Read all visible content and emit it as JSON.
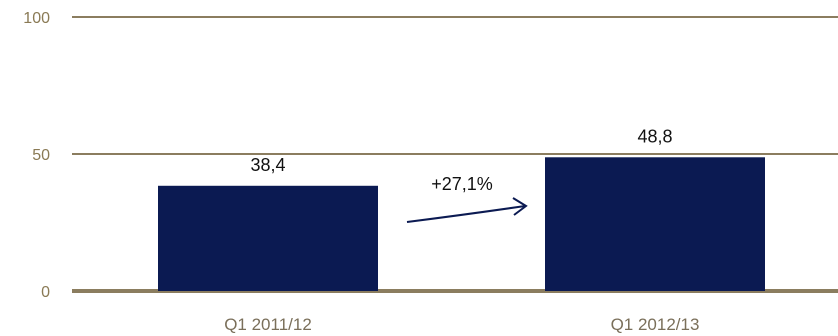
{
  "chart_data": {
    "type": "bar",
    "categories": [
      "Q1 2011/12",
      "Q1 2012/13"
    ],
    "values": [
      38.4,
      48.8
    ],
    "value_labels": [
      "38,4",
      "48,8"
    ],
    "yticks": [
      0,
      50,
      100
    ],
    "ylim": [
      0,
      100
    ],
    "grid": true,
    "annotation": "+27,1%",
    "title": "",
    "xlabel": "",
    "ylabel": ""
  },
  "colors": {
    "bar": "#0b1a52",
    "grid": "#8b7d5f",
    "axis": "#8b7d5f",
    "arrow": "#0b1a52"
  }
}
